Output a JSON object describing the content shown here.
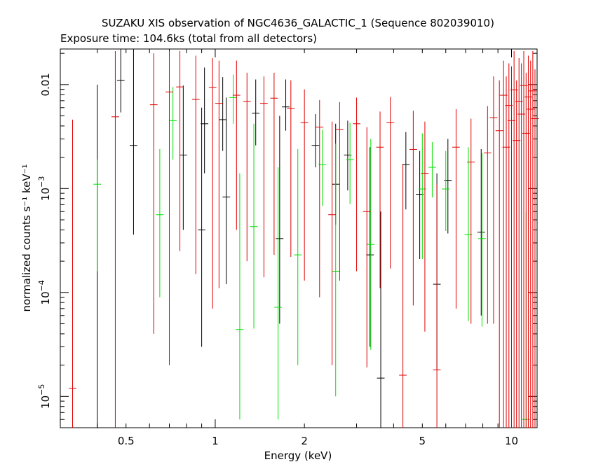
{
  "chart_data": {
    "type": "scatter",
    "title": "SUZAKU XIS observation of NGC4636_GALACTIC_1 (Sequence 802039010)",
    "subtitle": "Exposure time: 104.6ks (total from all detectors)",
    "xlabel": "Energy (keV)",
    "ylabel": "normalized counts s⁻¹ keV⁻¹",
    "x_scale": "log",
    "y_scale": "log",
    "xlim": [
      0.3,
      12.2
    ],
    "ylim": [
      5e-06,
      0.022
    ],
    "x_ticks": [
      {
        "value": 0.5,
        "label": "0.5"
      },
      {
        "value": 1,
        "label": "1"
      },
      {
        "value": 2,
        "label": "2"
      },
      {
        "value": 5,
        "label": "5"
      },
      {
        "value": 10,
        "label": "10"
      }
    ],
    "y_ticks": [
      {
        "value": 1e-05,
        "base": "10",
        "exp": "−5"
      },
      {
        "value": 0.0001,
        "base": "10",
        "exp": "−4"
      },
      {
        "value": 0.001,
        "base": "10",
        "exp": "−3"
      },
      {
        "value": 0.01,
        "base": "0.01",
        "exp": ""
      }
    ],
    "grid": false,
    "series": [
      {
        "color": "#000000",
        "points": [
          [
            0.4,
            4e-06,
            0.01,
            0.00026,
            4e-06
          ],
          [
            0.48,
            0.011,
            0.025,
            0.012,
            0.0054
          ],
          [
            0.53,
            0.0026,
            0.023,
            0.0034,
            0.00036
          ],
          [
            0.78,
            0.0021,
            0.0098,
            0.0027,
            0.0004
          ],
          [
            0.9,
            0.0004,
            0.006,
            0.0026,
            3e-05
          ],
          [
            0.92,
            0.0042,
            0.0146,
            0.0058,
            0.0014
          ],
          [
            1.06,
            0.0046,
            0.0118,
            0.0087,
            0.0023
          ],
          [
            1.09,
            0.00083,
            0.0075,
            0.002,
            0.00012
          ],
          [
            1.37,
            0.0053,
            0.0112,
            0.0093,
            0.0026
          ],
          [
            1.65,
            0.00033,
            0.005,
            0.0014,
            5e-05
          ],
          [
            1.73,
            0.0061,
            0.0112,
            0.0088,
            0.0036
          ],
          [
            2.18,
            0.0026,
            0.0052,
            0.0031,
            0.0016
          ],
          [
            2.55,
            0.0011,
            0.0042,
            0.0018,
            0.00045
          ],
          [
            2.8,
            0.0021,
            0.0045,
            0.0028,
            0.00096
          ],
          [
            3.33,
            0.00023,
            0.0025,
            0.0011,
            3e-05
          ],
          [
            3.62,
            1.5e-05,
            0.0006,
            0.00035,
            5e-06
          ],
          [
            4.4,
            0.0017,
            0.0035,
            0.0021,
            0.00063
          ],
          [
            4.9,
            0.00088,
            0.0023,
            0.0013,
            0.00021
          ],
          [
            5.6,
            0.00012,
            0.0014,
            0.00055,
            1.8e-05
          ],
          [
            6.1,
            0.0012,
            0.003,
            0.0016,
            0.00037
          ],
          [
            7.9,
            0.00038,
            0.0024,
            0.0013,
            6e-05
          ]
        ]
      },
      {
        "color": "#00e000",
        "points": [
          [
            0.4,
            0.0011,
            0.0019,
            0.008,
            0.00016
          ],
          [
            0.65,
            0.00056,
            0.0024,
            0.0016,
            9e-05
          ],
          [
            0.72,
            0.0045,
            0.0095,
            0.0068,
            0.0019
          ],
          [
            1.15,
            0.0075,
            0.0125,
            0.0091,
            0.0042
          ],
          [
            1.21,
            4.4e-05,
            0.0014,
            0.00033,
            6e-06
          ],
          [
            1.35,
            0.00043,
            0.0042,
            0.0016,
            4.5e-05
          ],
          [
            1.63,
            7.2e-05,
            0.0016,
            0.00043,
            6e-06
          ],
          [
            1.9,
            0.00023,
            0.0024,
            0.00075,
            2e-05
          ],
          [
            2.3,
            0.0017,
            0.0037,
            0.0024,
            0.00068
          ],
          [
            2.55,
            0.00016,
            0.0027,
            0.00069,
            1e-05
          ],
          [
            2.85,
            0.0019,
            0.0043,
            0.0026,
            0.00071
          ],
          [
            3.35,
            0.00029,
            0.003,
            0.0011,
            2.8e-05
          ],
          [
            5.0,
            0.00099,
            0.0034,
            0.0017,
            0.00021
          ],
          [
            5.4,
            0.0016,
            0.0028,
            0.0021,
            0.00082
          ],
          [
            6.0,
            0.00099,
            0.0023,
            0.0013,
            0.00039
          ],
          [
            7.15,
            0.00036,
            0.0025,
            0.0011,
            5.3e-05
          ],
          [
            7.95,
            0.00033,
            0.0022,
            0.0012,
            4.7e-05
          ],
          [
            11.2,
            6e-06,
            0.0006,
            0.00014,
            5e-06
          ]
        ]
      },
      {
        "color": "#e00000",
        "points": [
          [
            0.33,
            1.2e-05,
            0.0046,
            0.00044,
            5e-06
          ],
          [
            0.46,
            0.0049,
            0.021,
            0.011,
            5e-06
          ],
          [
            0.62,
            0.0064,
            0.02,
            0.0096,
            4e-05
          ],
          [
            0.7,
            0.0085,
            0.021,
            0.012,
            2e-05
          ],
          [
            0.76,
            0.0095,
            0.021,
            0.013,
            0.00025
          ],
          [
            0.86,
            0.0072,
            0.019,
            0.011,
            0.00015
          ],
          [
            0.98,
            0.0094,
            0.018,
            0.013,
            7e-05
          ],
          [
            1.03,
            0.0066,
            0.017,
            0.0093,
            0.00011
          ],
          [
            1.18,
            0.0079,
            0.017,
            0.0099,
            0.0004
          ],
          [
            1.28,
            0.0069,
            0.013,
            0.0084,
            0.0002
          ],
          [
            1.46,
            0.0066,
            0.012,
            0.0093,
            0.00014
          ],
          [
            1.58,
            0.0074,
            0.013,
            0.0089,
            0.00023
          ],
          [
            1.8,
            0.0059,
            0.011,
            0.0073,
            0.00022
          ],
          [
            2.0,
            0.0043,
            0.009,
            0.0056,
            0.00013
          ],
          [
            2.25,
            0.0039,
            0.0071,
            0.0048,
            9e-05
          ],
          [
            2.48,
            0.00056,
            0.0044,
            0.0016,
            2e-05
          ],
          [
            2.63,
            0.0037,
            0.0068,
            0.0044,
            0.00013
          ],
          [
            3.0,
            0.0042,
            0.0075,
            0.0052,
            0.00016
          ],
          [
            3.25,
            0.0006,
            0.0039,
            0.0014,
            1.9e-05
          ],
          [
            3.6,
            0.0025,
            0.0055,
            0.0033,
            0.00011
          ],
          [
            3.9,
            0.0043,
            0.0076,
            0.0055,
            0.00017
          ],
          [
            4.3,
            1.6e-05,
            0.0017,
            0.0006,
            5e-06
          ],
          [
            4.66,
            0.00238,
            0.0056,
            0.0031,
            7.5e-05
          ],
          [
            5.1,
            0.0014,
            0.0044,
            0.0018,
            4.2e-05
          ],
          [
            5.6,
            1.8e-05,
            0.0011,
            0.00038,
            5e-06
          ],
          [
            6.5,
            0.0025,
            0.0058,
            0.0031,
            7e-05
          ],
          [
            7.3,
            0.0018,
            0.0047,
            0.0023,
            5e-05
          ],
          [
            8.3,
            0.0022,
            0.0062,
            0.0029,
            5e-05
          ],
          [
            8.7,
            0.0048,
            0.012,
            0.0061,
            5e-05
          ],
          [
            9.1,
            0.0036,
            0.011,
            0.0048,
            5e-06
          ],
          [
            9.4,
            0.0079,
            0.017,
            0.0102,
            5e-06
          ],
          [
            9.6,
            0.0025,
            0.012,
            0.0038,
            5e-06
          ],
          [
            9.8,
            0.0063,
            0.016,
            0.0079,
            5e-06
          ],
          [
            10.0,
            0.0045,
            0.015,
            0.0061,
            5e-06
          ],
          [
            10.2,
            0.0089,
            0.021,
            0.0114,
            5e-06
          ],
          [
            10.4,
            0.0029,
            0.011,
            0.0041,
            5e-06
          ],
          [
            10.6,
            0.0069,
            0.018,
            0.0089,
            5e-06
          ],
          [
            10.8,
            0.0052,
            0.016,
            0.0071,
            5e-06
          ],
          [
            11.0,
            0.0098,
            0.021,
            0.0121,
            5e-06
          ],
          [
            11.2,
            0.0034,
            0.013,
            0.0048,
            5e-06
          ],
          [
            11.4,
            0.0076,
            0.019,
            0.0099,
            5e-06
          ],
          [
            11.6,
            0.0058,
            0.017,
            0.0078,
            5e-06
          ],
          [
            11.8,
            0.0087,
            0.021,
            0.0112,
            5e-06
          ],
          [
            12.0,
            0.0047,
            0.014,
            0.0063,
            5e-06
          ]
        ]
      }
    ]
  }
}
